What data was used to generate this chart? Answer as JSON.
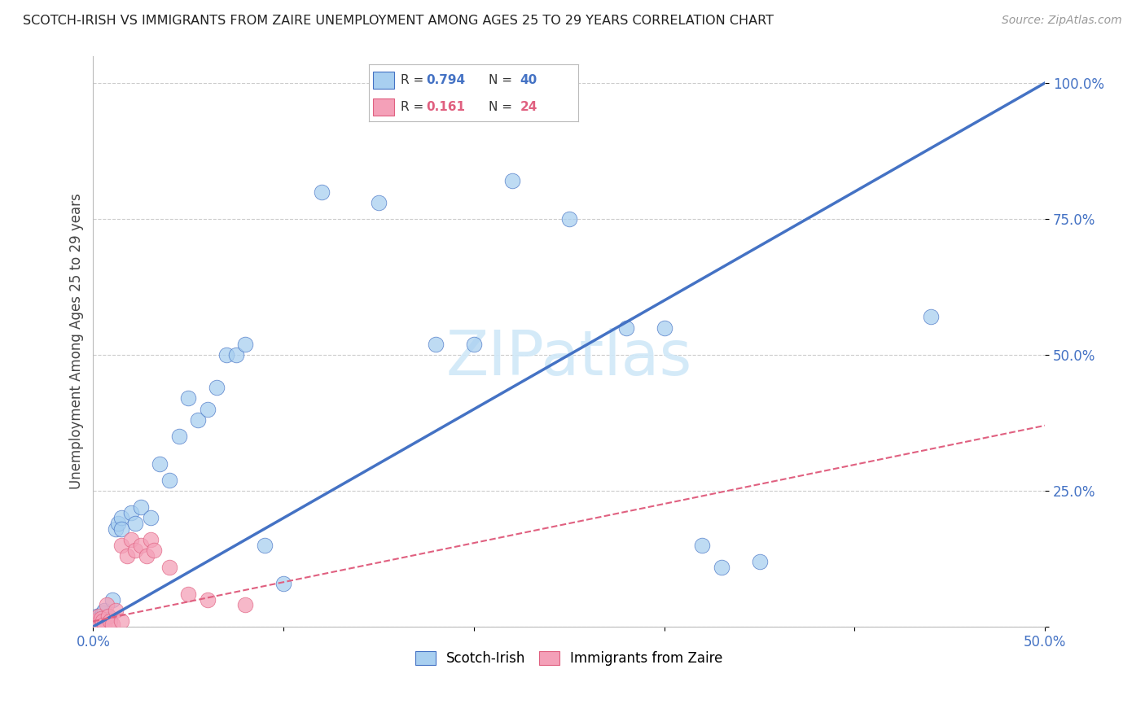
{
  "title": "SCOTCH-IRISH VS IMMIGRANTS FROM ZAIRE UNEMPLOYMENT AMONG AGES 25 TO 29 YEARS CORRELATION CHART",
  "source": "Source: ZipAtlas.com",
  "ylabel": "Unemployment Among Ages 25 to 29 years",
  "xlim": [
    0.0,
    0.5
  ],
  "ylim": [
    0.0,
    1.05
  ],
  "yticks": [
    0.0,
    0.25,
    0.5,
    0.75,
    1.0
  ],
  "ytick_labels": [
    "",
    "25.0%",
    "50.0%",
    "75.0%",
    "100.0%"
  ],
  "xticks": [
    0.0,
    0.1,
    0.2,
    0.3,
    0.4,
    0.5
  ],
  "xtick_labels": [
    "0.0%",
    "",
    "",
    "",
    "",
    "50.0%"
  ],
  "blue_scatter": [
    [
      0.001,
      0.01
    ],
    [
      0.002,
      0.02
    ],
    [
      0.003,
      0.015
    ],
    [
      0.004,
      0.01
    ],
    [
      0.005,
      0.025
    ],
    [
      0.006,
      0.03
    ],
    [
      0.008,
      0.02
    ],
    [
      0.01,
      0.05
    ],
    [
      0.012,
      0.18
    ],
    [
      0.013,
      0.19
    ],
    [
      0.015,
      0.2
    ],
    [
      0.015,
      0.18
    ],
    [
      0.02,
      0.21
    ],
    [
      0.022,
      0.19
    ],
    [
      0.025,
      0.22
    ],
    [
      0.03,
      0.2
    ],
    [
      0.035,
      0.3
    ],
    [
      0.04,
      0.27
    ],
    [
      0.045,
      0.35
    ],
    [
      0.05,
      0.42
    ],
    [
      0.055,
      0.38
    ],
    [
      0.06,
      0.4
    ],
    [
      0.065,
      0.44
    ],
    [
      0.07,
      0.5
    ],
    [
      0.075,
      0.5
    ],
    [
      0.08,
      0.52
    ],
    [
      0.09,
      0.15
    ],
    [
      0.1,
      0.08
    ],
    [
      0.12,
      0.8
    ],
    [
      0.15,
      0.78
    ],
    [
      0.18,
      0.52
    ],
    [
      0.2,
      0.52
    ],
    [
      0.22,
      0.82
    ],
    [
      0.25,
      0.75
    ],
    [
      0.28,
      0.55
    ],
    [
      0.3,
      0.55
    ],
    [
      0.32,
      0.15
    ],
    [
      0.33,
      0.11
    ],
    [
      0.35,
      0.12
    ],
    [
      0.44,
      0.57
    ]
  ],
  "pink_scatter": [
    [
      0.001,
      0.01
    ],
    [
      0.002,
      0.005
    ],
    [
      0.003,
      0.02
    ],
    [
      0.004,
      0.015
    ],
    [
      0.005,
      0.01
    ],
    [
      0.006,
      0.005
    ],
    [
      0.007,
      0.04
    ],
    [
      0.008,
      0.02
    ],
    [
      0.009,
      0.01
    ],
    [
      0.01,
      0.005
    ],
    [
      0.012,
      0.03
    ],
    [
      0.015,
      0.01
    ],
    [
      0.015,
      0.15
    ],
    [
      0.018,
      0.13
    ],
    [
      0.02,
      0.16
    ],
    [
      0.022,
      0.14
    ],
    [
      0.025,
      0.15
    ],
    [
      0.028,
      0.13
    ],
    [
      0.03,
      0.16
    ],
    [
      0.032,
      0.14
    ],
    [
      0.04,
      0.11
    ],
    [
      0.05,
      0.06
    ],
    [
      0.06,
      0.05
    ],
    [
      0.08,
      0.04
    ]
  ],
  "blue_line_x": [
    0.0,
    0.5
  ],
  "blue_line_y": [
    0.0,
    1.0
  ],
  "pink_line_x": [
    0.0,
    0.5
  ],
  "pink_line_y": [
    0.01,
    0.37
  ],
  "blue_r": "0.794",
  "blue_n": "40",
  "pink_r": "0.161",
  "pink_n": "24",
  "blue_color": "#A8CFF0",
  "blue_line_color": "#4472C4",
  "pink_color": "#F4A0B8",
  "pink_line_color": "#E06080",
  "watermark_color": "#D0E8F8",
  "background_color": "#FFFFFF",
  "grid_color": "#CCCCCC"
}
